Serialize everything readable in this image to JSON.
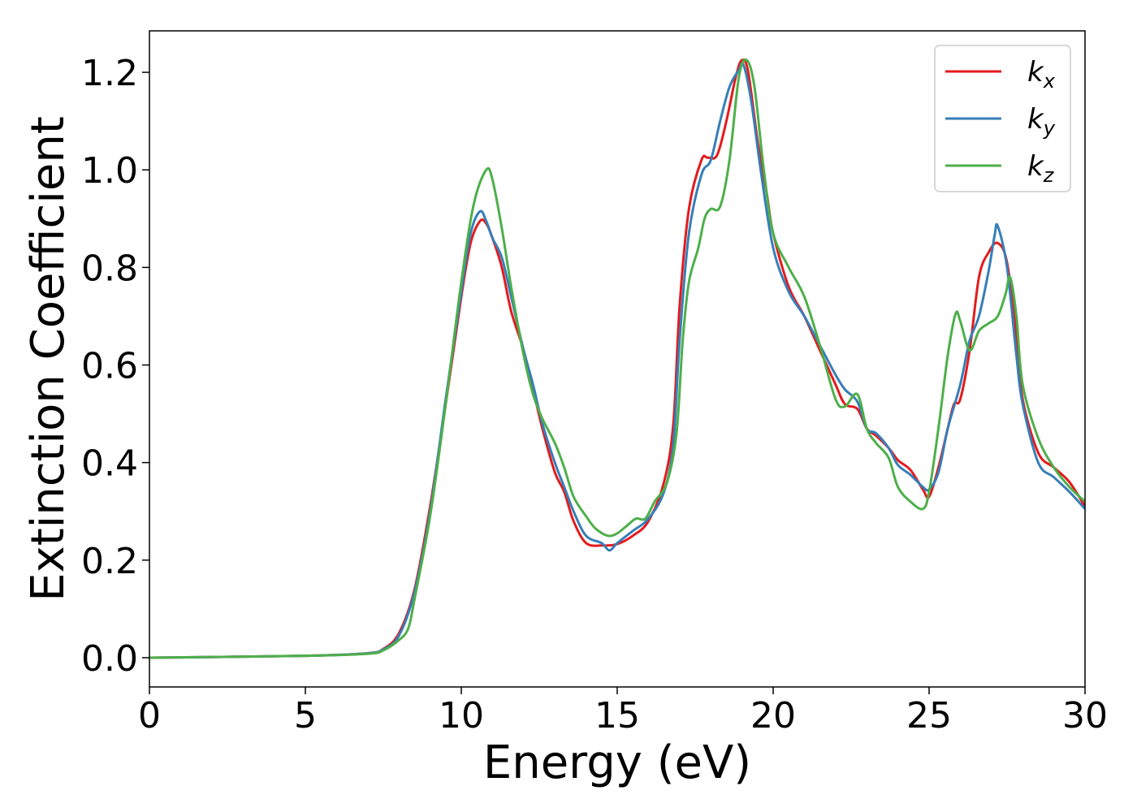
{
  "chart_data": {
    "type": "line",
    "title": "",
    "xlabel": "Energy (eV)",
    "ylabel": "Extinction Coefficient",
    "xlim": [
      0,
      30
    ],
    "ylim": [
      -0.06,
      1.285
    ],
    "xticks": [
      0,
      5,
      10,
      15,
      20,
      25,
      30
    ],
    "xtick_labels": [
      "0",
      "5",
      "10",
      "15",
      "20",
      "25",
      "30"
    ],
    "yticks": [
      0.0,
      0.2,
      0.4,
      0.6,
      0.8,
      1.0,
      1.2
    ],
    "ytick_labels": [
      "0.0",
      "0.2",
      "0.4",
      "0.6",
      "0.8",
      "1.0",
      "1.2"
    ],
    "grid": false,
    "legend_position": "top-right",
    "series": [
      {
        "name": "k_x",
        "label_base": "k",
        "label_sub": "x",
        "color": "#e41a1c",
        "points": [
          [
            0,
            0
          ],
          [
            5,
            0.004
          ],
          [
            7,
            0.009
          ],
          [
            7.5,
            0.018
          ],
          [
            8,
            0.05
          ],
          [
            8.5,
            0.14
          ],
          [
            9,
            0.31
          ],
          [
            9.5,
            0.52
          ],
          [
            10,
            0.74
          ],
          [
            10.3,
            0.85
          ],
          [
            10.6,
            0.895
          ],
          [
            10.8,
            0.89
          ],
          [
            11,
            0.86
          ],
          [
            11.3,
            0.8
          ],
          [
            11.6,
            0.71
          ],
          [
            12,
            0.63
          ],
          [
            12.3,
            0.55
          ],
          [
            12.6,
            0.47
          ],
          [
            13,
            0.38
          ],
          [
            13.3,
            0.34
          ],
          [
            13.6,
            0.28
          ],
          [
            14,
            0.235
          ],
          [
            14.5,
            0.23
          ],
          [
            15,
            0.233
          ],
          [
            15.5,
            0.25
          ],
          [
            16,
            0.28
          ],
          [
            16.5,
            0.36
          ],
          [
            16.8,
            0.48
          ],
          [
            17,
            0.72
          ],
          [
            17.3,
            0.92
          ],
          [
            17.7,
            1.02
          ],
          [
            17.9,
            1.025
          ],
          [
            18.2,
            1.03
          ],
          [
            18.5,
            1.1
          ],
          [
            18.8,
            1.19
          ],
          [
            19,
            1.225
          ],
          [
            19.2,
            1.2
          ],
          [
            19.5,
            1.06
          ],
          [
            19.8,
            0.95
          ],
          [
            20,
            0.87
          ],
          [
            20.5,
            0.76
          ],
          [
            21,
            0.7
          ],
          [
            21.5,
            0.63
          ],
          [
            22,
            0.56
          ],
          [
            22.3,
            0.52
          ],
          [
            22.7,
            0.51
          ],
          [
            23,
            0.47
          ],
          [
            23.3,
            0.455
          ],
          [
            23.7,
            0.43
          ],
          [
            24,
            0.405
          ],
          [
            24.4,
            0.385
          ],
          [
            24.8,
            0.345
          ],
          [
            25,
            0.33
          ],
          [
            25.3,
            0.39
          ],
          [
            25.6,
            0.47
          ],
          [
            25.8,
            0.52
          ],
          [
            26,
            0.53
          ],
          [
            26.3,
            0.63
          ],
          [
            26.6,
            0.78
          ],
          [
            26.9,
            0.83
          ],
          [
            27.2,
            0.85
          ],
          [
            27.5,
            0.81
          ],
          [
            27.8,
            0.66
          ],
          [
            28,
            0.53
          ],
          [
            28.5,
            0.42
          ],
          [
            29,
            0.39
          ],
          [
            29.5,
            0.36
          ],
          [
            30,
            0.31
          ]
        ]
      },
      {
        "name": "k_y",
        "label_base": "k",
        "label_sub": "y",
        "color": "#377eb8",
        "points": [
          [
            0,
            0
          ],
          [
            5,
            0.004
          ],
          [
            7,
            0.009
          ],
          [
            7.5,
            0.017
          ],
          [
            8,
            0.045
          ],
          [
            8.5,
            0.135
          ],
          [
            9,
            0.3
          ],
          [
            9.5,
            0.53
          ],
          [
            10,
            0.75
          ],
          [
            10.3,
            0.87
          ],
          [
            10.6,
            0.915
          ],
          [
            10.8,
            0.895
          ],
          [
            11,
            0.86
          ],
          [
            11.3,
            0.82
          ],
          [
            11.6,
            0.74
          ],
          [
            12,
            0.63
          ],
          [
            12.3,
            0.56
          ],
          [
            12.6,
            0.48
          ],
          [
            13,
            0.4
          ],
          [
            13.3,
            0.35
          ],
          [
            13.6,
            0.3
          ],
          [
            14,
            0.25
          ],
          [
            14.5,
            0.235
          ],
          [
            14.75,
            0.22
          ],
          [
            15,
            0.235
          ],
          [
            15.5,
            0.26
          ],
          [
            16,
            0.285
          ],
          [
            16.5,
            0.34
          ],
          [
            16.8,
            0.44
          ],
          [
            17,
            0.65
          ],
          [
            17.3,
            0.87
          ],
          [
            17.7,
            0.99
          ],
          [
            18,
            1.02
          ],
          [
            18.3,
            1.1
          ],
          [
            18.6,
            1.17
          ],
          [
            18.9,
            1.205
          ],
          [
            19.05,
            1.215
          ],
          [
            19.3,
            1.14
          ],
          [
            19.6,
            1.0
          ],
          [
            20,
            0.84
          ],
          [
            20.5,
            0.75
          ],
          [
            21,
            0.7
          ],
          [
            21.5,
            0.64
          ],
          [
            22,
            0.58
          ],
          [
            22.3,
            0.55
          ],
          [
            22.7,
            0.525
          ],
          [
            23,
            0.47
          ],
          [
            23.3,
            0.46
          ],
          [
            23.7,
            0.43
          ],
          [
            24,
            0.395
          ],
          [
            24.4,
            0.375
          ],
          [
            24.8,
            0.35
          ],
          [
            25,
            0.345
          ],
          [
            25.3,
            0.38
          ],
          [
            25.6,
            0.47
          ],
          [
            26,
            0.56
          ],
          [
            26.3,
            0.65
          ],
          [
            26.6,
            0.7
          ],
          [
            26.9,
            0.79
          ],
          [
            27.1,
            0.865
          ],
          [
            27.2,
            0.885
          ],
          [
            27.5,
            0.8
          ],
          [
            27.8,
            0.62
          ],
          [
            28,
            0.52
          ],
          [
            28.5,
            0.4
          ],
          [
            29,
            0.37
          ],
          [
            29.5,
            0.34
          ],
          [
            30,
            0.305
          ]
        ]
      },
      {
        "name": "k_z",
        "label_base": "k",
        "label_sub": "z",
        "color": "#4daf4a",
        "points": [
          [
            0,
            0
          ],
          [
            5,
            0.004
          ],
          [
            7,
            0.008
          ],
          [
            7.5,
            0.015
          ],
          [
            8,
            0.036
          ],
          [
            8.3,
            0.06
          ],
          [
            8.5,
            0.12
          ],
          [
            9,
            0.29
          ],
          [
            9.5,
            0.52
          ],
          [
            10,
            0.77
          ],
          [
            10.4,
            0.93
          ],
          [
            10.8,
            1.0
          ],
          [
            11,
            0.98
          ],
          [
            11.3,
            0.88
          ],
          [
            11.6,
            0.76
          ],
          [
            12,
            0.62
          ],
          [
            12.3,
            0.54
          ],
          [
            12.6,
            0.49
          ],
          [
            13,
            0.44
          ],
          [
            13.3,
            0.39
          ],
          [
            13.6,
            0.33
          ],
          [
            14,
            0.29
          ],
          [
            14.3,
            0.265
          ],
          [
            14.7,
            0.25
          ],
          [
            15,
            0.255
          ],
          [
            15.3,
            0.27
          ],
          [
            15.6,
            0.285
          ],
          [
            15.9,
            0.285
          ],
          [
            16.2,
            0.32
          ],
          [
            16.6,
            0.36
          ],
          [
            16.9,
            0.46
          ],
          [
            17.1,
            0.65
          ],
          [
            17.3,
            0.77
          ],
          [
            17.6,
            0.84
          ],
          [
            17.8,
            0.9
          ],
          [
            18,
            0.92
          ],
          [
            18.3,
            0.925
          ],
          [
            18.6,
            1.02
          ],
          [
            18.9,
            1.19
          ],
          [
            19.15,
            1.225
          ],
          [
            19.4,
            1.17
          ],
          [
            19.7,
            1.0
          ],
          [
            20,
            0.87
          ],
          [
            20.5,
            0.8
          ],
          [
            21,
            0.74
          ],
          [
            21.5,
            0.64
          ],
          [
            22,
            0.53
          ],
          [
            22.3,
            0.515
          ],
          [
            22.7,
            0.54
          ],
          [
            23,
            0.47
          ],
          [
            23.3,
            0.44
          ],
          [
            23.7,
            0.41
          ],
          [
            24,
            0.35
          ],
          [
            24.4,
            0.32
          ],
          [
            24.8,
            0.305
          ],
          [
            25,
            0.34
          ],
          [
            25.3,
            0.47
          ],
          [
            25.6,
            0.62
          ],
          [
            25.85,
            0.705
          ],
          [
            26,
            0.69
          ],
          [
            26.3,
            0.63
          ],
          [
            26.6,
            0.67
          ],
          [
            26.9,
            0.685
          ],
          [
            27.2,
            0.7
          ],
          [
            27.45,
            0.745
          ],
          [
            27.6,
            0.78
          ],
          [
            27.8,
            0.7
          ],
          [
            28,
            0.56
          ],
          [
            28.5,
            0.45
          ],
          [
            29,
            0.39
          ],
          [
            29.5,
            0.35
          ],
          [
            30,
            0.32
          ]
        ]
      }
    ]
  }
}
